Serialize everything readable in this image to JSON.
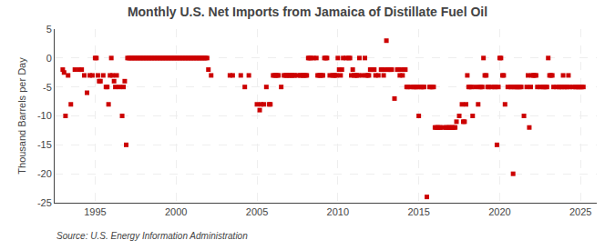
{
  "chart_data": {
    "type": "scatter",
    "title": "Monthly U.S. Net Imports from Jamaica of Distillate Fuel Oil",
    "y_label": "Thousand Barrels per Day",
    "annotations": [
      "Source: U.S. Energy Information Administration"
    ],
    "color": "#cc0000",
    "marker": "square",
    "grid": true,
    "xlim": [
      1992.5,
      2026.0
    ],
    "xticks": [
      1995,
      2000,
      2005,
      2010,
      2015,
      2020,
      2025
    ],
    "ylim": [
      -25,
      5
    ],
    "yticks": [
      5,
      0,
      -5,
      -10,
      -15,
      -20,
      -25
    ],
    "x": [
      1993,
      1993.08,
      1993.17,
      1993.33,
      1993.5,
      1993.75,
      1994,
      1994.17,
      1994.33,
      1994.5,
      1994.67,
      1994.83,
      1995,
      1995.08,
      1995.17,
      1995.25,
      1995.33,
      1995.5,
      1995.67,
      1995.75,
      1995.83,
      1995.92,
      1996,
      1996.08,
      1996.17,
      1996.25,
      1996.33,
      1996.5,
      1996.67,
      1996.75,
      1996.83,
      1996.92,
      1997,
      1997.08,
      1997.17,
      1997.25,
      1997.33,
      1997.42,
      1997.5,
      1997.58,
      1997.67,
      1997.75,
      1997.83,
      1997.92,
      1998,
      1998.08,
      1998.17,
      1998.25,
      1998.33,
      1998.42,
      1998.5,
      1998.58,
      1998.67,
      1998.75,
      1998.83,
      1998.92,
      1999,
      1999.08,
      1999.17,
      1999.25,
      1999.33,
      1999.42,
      1999.5,
      1999.58,
      1999.67,
      1999.75,
      1999.83,
      1999.92,
      2000,
      2000.08,
      2000.17,
      2000.25,
      2000.33,
      2000.42,
      2000.5,
      2000.58,
      2000.67,
      2000.75,
      2000.83,
      2000.92,
      2001,
      2001.08,
      2001.17,
      2001.25,
      2001.33,
      2001.42,
      2001.5,
      2001.58,
      2001.67,
      2001.75,
      2001.83,
      2001.92,
      2002,
      2002.17,
      2003.33,
      2003.5,
      2004,
      2004.25,
      2004.5,
      2005,
      2005.17,
      2005.25,
      2005.42,
      2005.58,
      2005.75,
      2005.83,
      2006,
      2006.08,
      2006.17,
      2006.25,
      2006.33,
      2006.5,
      2006.67,
      2006.75,
      2006.83,
      2006.92,
      2007,
      2007.08,
      2007.17,
      2007.25,
      2007.33,
      2007.5,
      2007.67,
      2007.75,
      2007.83,
      2007.92,
      2008,
      2008.08,
      2008.17,
      2008.25,
      2008.33,
      2008.5,
      2008.67,
      2008.75,
      2008.83,
      2008.92,
      2009,
      2009.08,
      2009.17,
      2009.25,
      2009.33,
      2009.5,
      2009.67,
      2009.75,
      2009.83,
      2009.92,
      2010,
      2010.08,
      2010.17,
      2010.25,
      2010.33,
      2010.5,
      2010.67,
      2010.75,
      2010.83,
      2010.92,
      2011,
      2011.08,
      2011.17,
      2011.25,
      2011.33,
      2011.5,
      2011.67,
      2011.75,
      2011.83,
      2011.92,
      2012,
      2012.08,
      2012.17,
      2012.25,
      2012.33,
      2012.5,
      2012.67,
      2012.75,
      2012.83,
      2012.92,
      2013,
      2013.08,
      2013.17,
      2013.25,
      2013.33,
      2013.5,
      2013.67,
      2013.75,
      2013.83,
      2013.92,
      2014,
      2014.08,
      2014.17,
      2014.25,
      2014.33,
      2014.5,
      2014.67,
      2014.75,
      2014.83,
      2014.92,
      2015,
      2015.08,
      2015.17,
      2015.25,
      2015.33,
      2015.5,
      2015.67,
      2015.75,
      2015.83,
      2015.92,
      2016,
      2016.08,
      2016.17,
      2016.25,
      2016.33,
      2016.5,
      2016.67,
      2016.75,
      2016.83,
      2016.92,
      2017,
      2017.08,
      2017.17,
      2017.25,
      2017.33,
      2017.5,
      2017.67,
      2017.75,
      2017.83,
      2017.92,
      2018,
      2018.08,
      2018.17,
      2018.25,
      2018.33,
      2018.5,
      2018.67,
      2018.75,
      2018.83,
      2018.92,
      2019,
      2019.08,
      2019.17,
      2019.25,
      2019.33,
      2019.5,
      2019.67,
      2019.75,
      2019.83,
      2019.92,
      2020,
      2020.08,
      2020.17,
      2020.25,
      2020.33,
      2020.5,
      2020.67,
      2020.75,
      2020.83,
      2020.92,
      2021,
      2021.08,
      2021.17,
      2021.25,
      2021.33,
      2021.5,
      2021.67,
      2021.75,
      2021.83,
      2021.92,
      2022,
      2022.08,
      2022.17,
      2022.25,
      2022.33,
      2022.5,
      2022.67,
      2022.75,
      2022.83,
      2022.92,
      2023,
      2023.08,
      2023.17,
      2023.25,
      2023.33,
      2023.5,
      2023.67,
      2023.75,
      2023.83,
      2023.92,
      2024,
      2024.08,
      2024.17,
      2024.25,
      2024.33,
      2024.5,
      2024.67,
      2024.75,
      2024.83,
      2024.92,
      2025,
      2025.08,
      2025.17
    ],
    "values": [
      -2,
      -2.5,
      -10,
      -3,
      -8,
      -2,
      -2,
      -2,
      -3,
      -6,
      -3,
      -3,
      0,
      0,
      -3,
      -4,
      -4,
      -3,
      -5,
      -5,
      -8,
      -3,
      0,
      -3,
      -4,
      -5,
      -3,
      -5,
      -10,
      -5,
      -4,
      -15,
      0,
      0,
      0,
      0,
      0,
      0,
      0,
      0,
      0,
      0,
      0,
      0,
      0,
      0,
      0,
      0,
      0,
      0,
      0,
      0,
      0,
      0,
      0,
      0,
      0,
      0,
      0,
      0,
      0,
      0,
      0,
      0,
      0,
      0,
      0,
      0,
      0,
      0,
      0,
      0,
      0,
      0,
      0,
      0,
      0,
      0,
      0,
      0,
      0,
      0,
      0,
      0,
      0,
      0,
      0,
      0,
      0,
      0,
      0,
      0,
      -2,
      -3,
      -3,
      -3,
      -3,
      -5,
      -3,
      -8,
      -9,
      -8,
      -8,
      -5,
      -8,
      -8,
      -3,
      -3,
      -3,
      -3,
      -3,
      -5,
      -3,
      -3,
      -3,
      -3,
      -3,
      -3,
      -3,
      -3,
      -3,
      -3,
      -3,
      -3,
      -3,
      -3,
      -3,
      -3,
      0,
      0,
      0,
      0,
      0,
      -3,
      -3,
      -3,
      -3,
      -3,
      0,
      0,
      0,
      -3,
      -3,
      -3,
      -3,
      -3,
      0,
      -2,
      -3,
      -2,
      0,
      0,
      0,
      0,
      -3,
      -2,
      -3,
      -3,
      -3,
      -3,
      0,
      -3,
      0,
      -3,
      -3,
      -3,
      -2,
      -2,
      -2,
      -2,
      -3,
      -3,
      -2,
      -2,
      -3,
      -2,
      3,
      -2,
      -2,
      -2,
      -2,
      -7,
      -2,
      -2,
      -3,
      -2,
      -3,
      -2,
      -2,
      -5,
      -5,
      -5,
      -5,
      -5,
      -5,
      -5,
      -10,
      -5,
      -5,
      -5,
      -5,
      -24,
      -5,
      -5,
      -5,
      -5,
      -12,
      -12,
      -12,
      -12,
      -12,
      -12,
      -12,
      -12,
      -12,
      -12,
      -12,
      -12,
      -12,
      -12,
      -11,
      -10,
      -8,
      -11,
      -11,
      -8,
      -3,
      -5,
      -5,
      -5,
      -10,
      -5,
      -8,
      -5,
      -5,
      -5,
      0,
      -3,
      -3,
      -5,
      -5,
      -5,
      -5,
      -5,
      -15,
      -5,
      0,
      0,
      -3,
      -3,
      -8,
      -5,
      -5,
      -5,
      -20,
      -5,
      -5,
      -5,
      -5,
      -5,
      -5,
      -10,
      -5,
      -3,
      -12,
      -5,
      -3,
      -3,
      -3,
      -3,
      -5,
      -5,
      -5,
      -5,
      -5,
      -5,
      0,
      -3,
      -3,
      -3,
      -5,
      -5,
      -5,
      -5,
      -5,
      -3,
      -5,
      -5,
      -5,
      -3,
      -5,
      -5,
      -5,
      -5,
      -5,
      -5,
      -5,
      -5,
      -5
    ]
  }
}
